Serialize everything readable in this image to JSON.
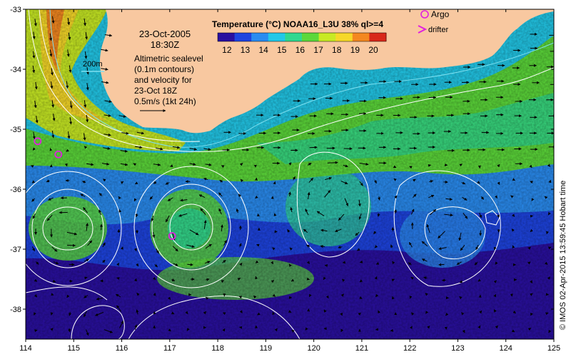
{
  "title": {
    "text": "Temperature (°C) NOAA16_L3U 38% ql>=4"
  },
  "colorbar": {
    "ticks": [
      "12",
      "13",
      "14",
      "15",
      "16",
      "17",
      "18",
      "19",
      "20"
    ],
    "vmin": 11.5,
    "vmax": 20.7,
    "colors": [
      "#2a10a0",
      "#1e44e0",
      "#2a8cf0",
      "#22c8e8",
      "#30d890",
      "#5cd83a",
      "#c8ea24",
      "#f6d828",
      "#f48820",
      "#d8281a"
    ]
  },
  "date": {
    "line1": "23-Oct-2005",
    "line2": "18:30Z"
  },
  "annotation": {
    "isobath_label": "200m",
    "lines": [
      "Altimetric sealevel",
      "(0.1m contours)",
      "and velocity for",
      "23-Oct 18Z",
      "0.5m/s (1kt 24h)"
    ]
  },
  "legend": {
    "argo": "Argo",
    "drifter": "drifter",
    "argo_color": "#e020e0"
  },
  "axes": {
    "lon_ticks": [
      "114",
      "115",
      "116",
      "117",
      "118",
      "119",
      "120",
      "121",
      "122",
      "123",
      "124",
      "125"
    ],
    "lat_ticks": [
      "-33",
      "-34",
      "-35",
      "-36",
      "-37",
      "-38"
    ],
    "lon_range": [
      114,
      125
    ],
    "lat_range": [
      -38.5,
      -33
    ]
  },
  "copyright": "© IMOS 02-Apr-2015 13:59:45 Hobart time",
  "map_data": {
    "argo_floats": [
      {
        "lon": 114.25,
        "lat": -35.2
      },
      {
        "lon": 114.68,
        "lat": -35.42
      },
      {
        "lon": 117.05,
        "lat": -36.78
      }
    ],
    "land_color": "#f8c8a0"
  }
}
